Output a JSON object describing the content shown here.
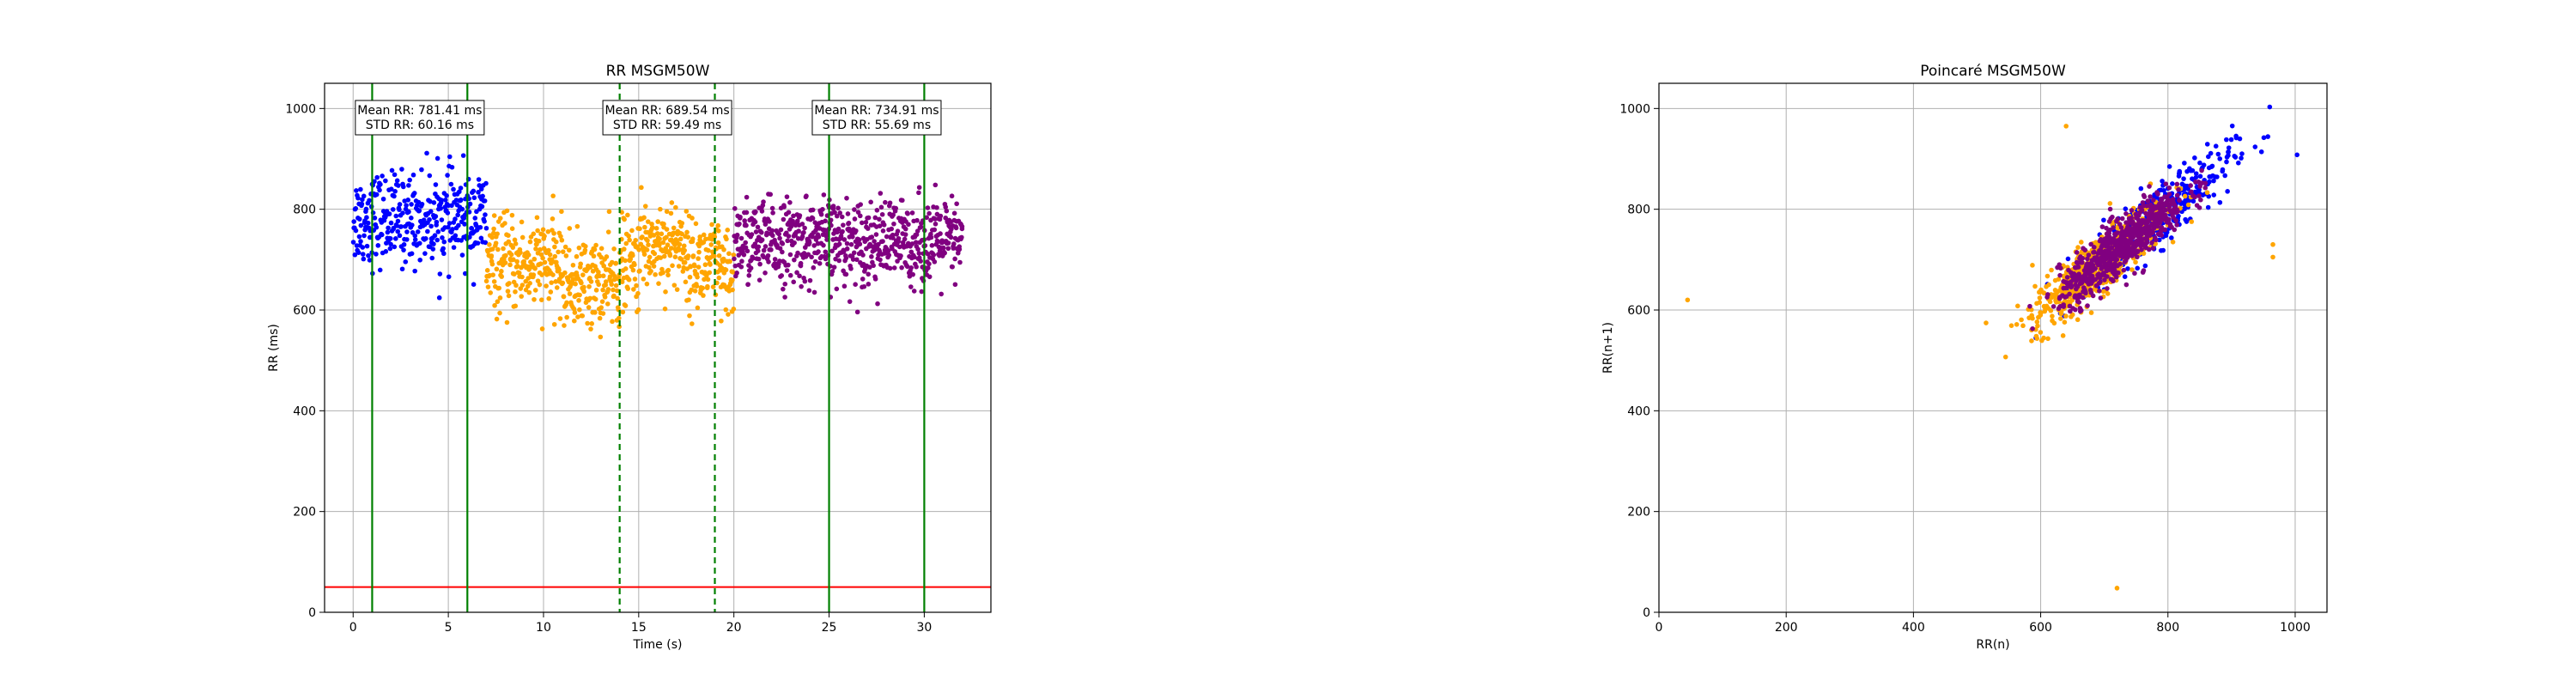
{
  "chart_data": [
    {
      "type": "scatter",
      "title": "RR MSGM50W",
      "xlabel": "Time (s)",
      "ylabel": "RR (ms)",
      "xlim": [
        -1.5,
        33.5
      ],
      "ylim": [
        0,
        1050
      ],
      "xticks": [
        0,
        5,
        10,
        15,
        20,
        25,
        30
      ],
      "yticks": [
        0,
        200,
        400,
        600,
        800,
        1000
      ],
      "grid": true,
      "series": [
        {
          "color": "#0000ff",
          "x_range": [
            0,
            7
          ],
          "mean": 781.41,
          "std": 60.16,
          "count": 360
        },
        {
          "color": "#ffa500",
          "x_range": [
            7,
            20
          ],
          "mean": 689.54,
          "std": 59.49,
          "count": 720,
          "trend": "dip near 12-14 s, spike near 15-17 s"
        },
        {
          "color": "#800080",
          "x_range": [
            20,
            32
          ],
          "mean": 734.91,
          "std": 55.69,
          "count": 680
        }
      ],
      "threshold_line": {
        "y": 50,
        "color": "#ff0000"
      },
      "vertical_lines": [
        {
          "x": 1,
          "color": "#008000",
          "style": "solid"
        },
        {
          "x": 6,
          "color": "#008000",
          "style": "solid"
        },
        {
          "x": 14,
          "color": "#008000",
          "style": "dashed"
        },
        {
          "x": 19,
          "color": "#008000",
          "style": "dashed"
        },
        {
          "x": 25,
          "color": "#008000",
          "style": "solid"
        },
        {
          "x": 30,
          "color": "#008000",
          "style": "solid"
        }
      ],
      "annotations": [
        {
          "x": 3.5,
          "line1": "Mean RR: 781.41 ms",
          "line2": "STD RR: 60.16 ms"
        },
        {
          "x": 16.5,
          "line1": "Mean RR: 689.54 ms",
          "line2": "STD RR: 59.49 ms"
        },
        {
          "x": 27.5,
          "line1": "Mean RR: 734.91 ms",
          "line2": "STD RR: 55.69 ms"
        }
      ]
    },
    {
      "type": "scatter",
      "title": "Poincaré MSGM50W",
      "xlabel": "RR(n)",
      "ylabel": "RR(n+1)",
      "xlim": [
        0,
        1050
      ],
      "ylim": [
        0,
        1050
      ],
      "xticks": [
        0,
        200,
        400,
        600,
        800,
        1000
      ],
      "yticks": [
        0,
        200,
        400,
        600,
        800,
        1000
      ],
      "grid": true,
      "series": [
        {
          "color": "#0000ff",
          "center": 785,
          "spread": 58,
          "count": 340
        },
        {
          "color": "#ffa500",
          "center": 690,
          "spread": 52,
          "count": 650
        },
        {
          "color": "#800080",
          "center": 730,
          "spread": 50,
          "count": 650
        }
      ],
      "outliers": [
        {
          "x": 45,
          "y": 620,
          "color": "#ffa500"
        },
        {
          "x": 720,
          "y": 48,
          "color": "#ffa500"
        },
        {
          "x": 960,
          "y": 1003,
          "color": "#0000ff"
        },
        {
          "x": 1003,
          "y": 908,
          "color": "#0000ff"
        },
        {
          "x": 965,
          "y": 730,
          "color": "#ffa500"
        },
        {
          "x": 965,
          "y": 705,
          "color": "#ffa500"
        },
        {
          "x": 640,
          "y": 965,
          "color": "#ffa500"
        }
      ]
    }
  ]
}
